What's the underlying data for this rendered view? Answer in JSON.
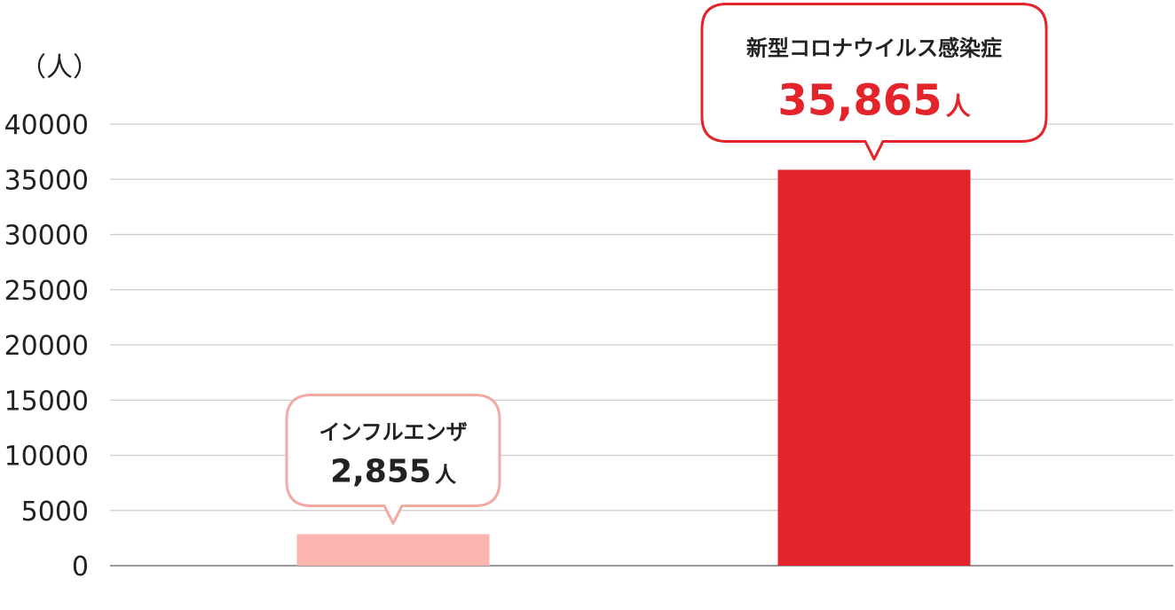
{
  "chart_data": {
    "type": "bar",
    "y_unit_label": "（人）",
    "ylim": [
      0,
      40000
    ],
    "y_ticks": [
      "0",
      "5000",
      "10000",
      "15000",
      "20000",
      "25000",
      "30000",
      "35000",
      "40000"
    ],
    "grid": true,
    "categories": [
      "インフルエンザ",
      "新型コロナウイルス感染症"
    ],
    "values": [
      2855,
      35865
    ],
    "value_labels": [
      "2,855",
      "35,865"
    ],
    "value_unit": "人",
    "colors": [
      "#fbb5ae",
      "#e3242b"
    ],
    "callout_border_colors": [
      "#f4aaa3",
      "#e3242b"
    ],
    "value_text_colors": [
      "#222222",
      "#e3242b"
    ],
    "axis_color": "#999999",
    "grid_color": "#cccccc"
  }
}
